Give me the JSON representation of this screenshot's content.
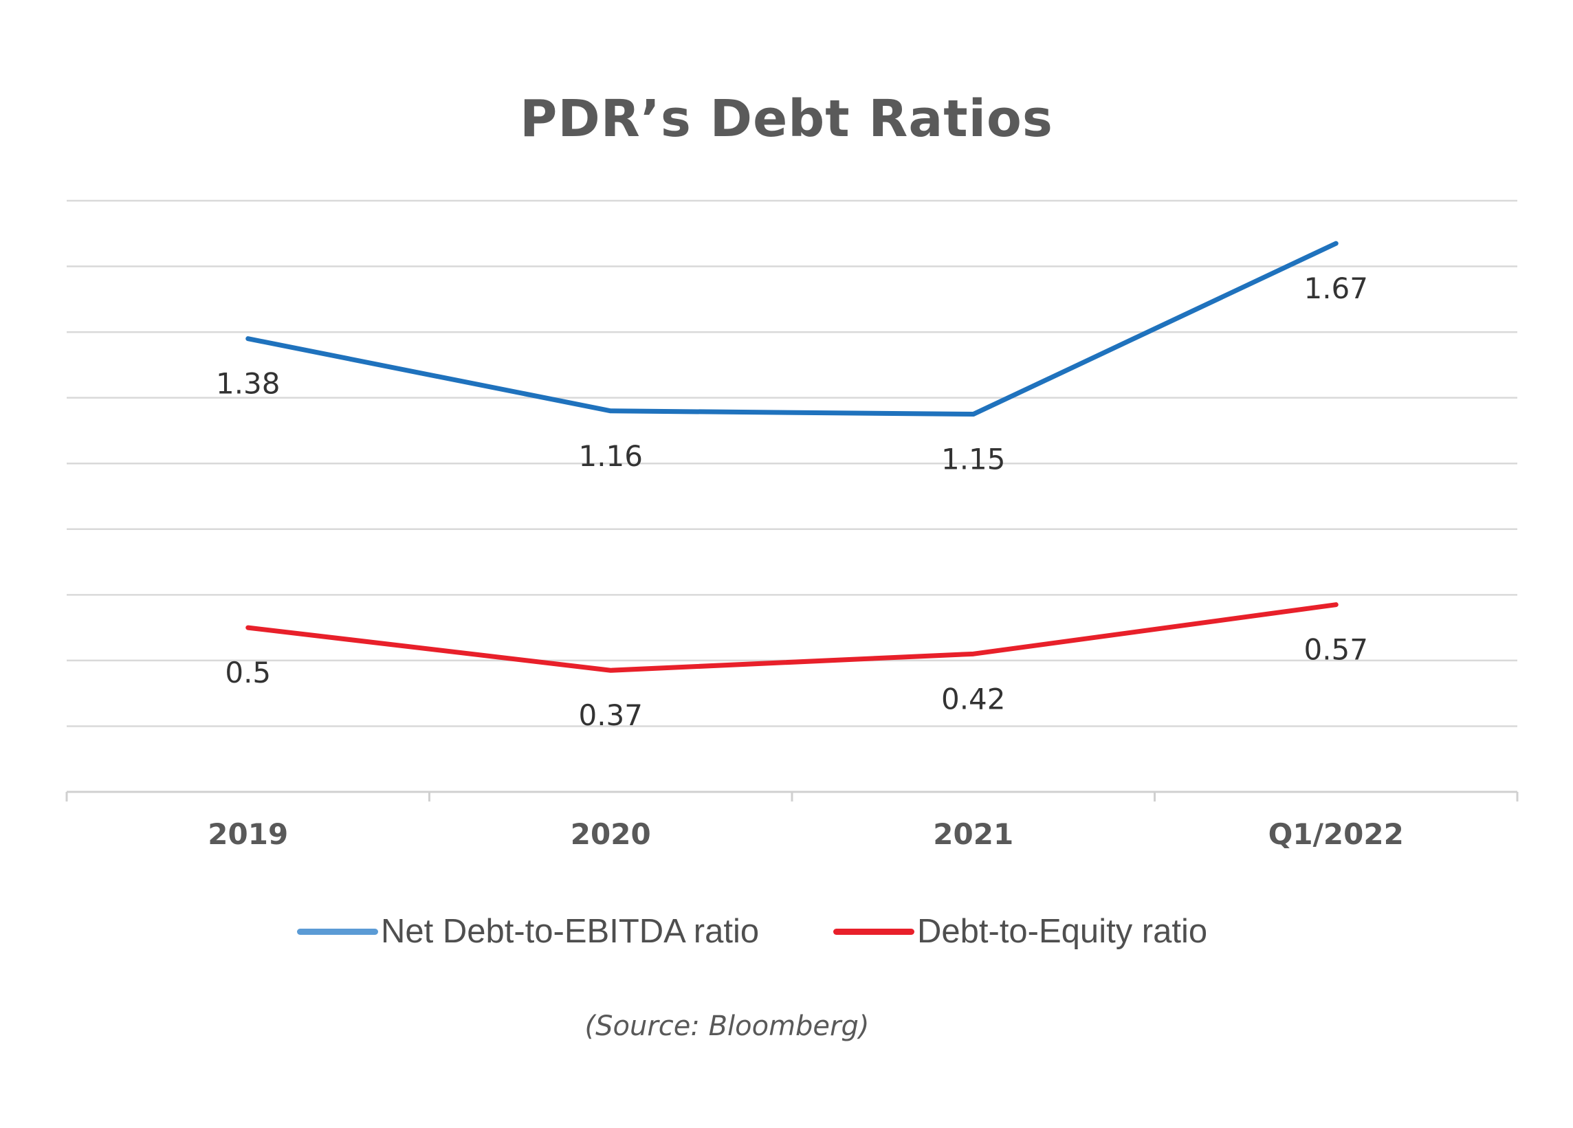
{
  "chart_data": {
    "type": "line",
    "title": "PDR’s Debt Ratios",
    "categories": [
      "2019",
      "2020",
      "2021",
      "Q1/2022"
    ],
    "series": [
      {
        "name": "Net Debt-to-EBITDA ratio",
        "values": [
          1.38,
          1.16,
          1.15,
          1.67
        ],
        "labels": [
          "1.38",
          "1.16",
          "1.15",
          "1.67"
        ],
        "color": "#1f72bd",
        "legend_color": "#5b9bd5"
      },
      {
        "name": "Debt-to-Equity ratio",
        "values": [
          0.5,
          0.37,
          0.42,
          0.57
        ],
        "labels": [
          "0.5",
          "0.37",
          "0.42",
          "0.57"
        ],
        "color": "#e8202a",
        "legend_color": "#e8202a"
      }
    ],
    "ylim": [
      0,
      1.8
    ],
    "grid": true,
    "legend_position": "bottom",
    "xlabel": "",
    "ylabel": ""
  },
  "source": "(Source: Bloomberg)",
  "colors": {
    "gridline": "#d9d9d9",
    "axis": "#d0d0d0",
    "tick_text": "#595959",
    "data_label": "#333333"
  }
}
